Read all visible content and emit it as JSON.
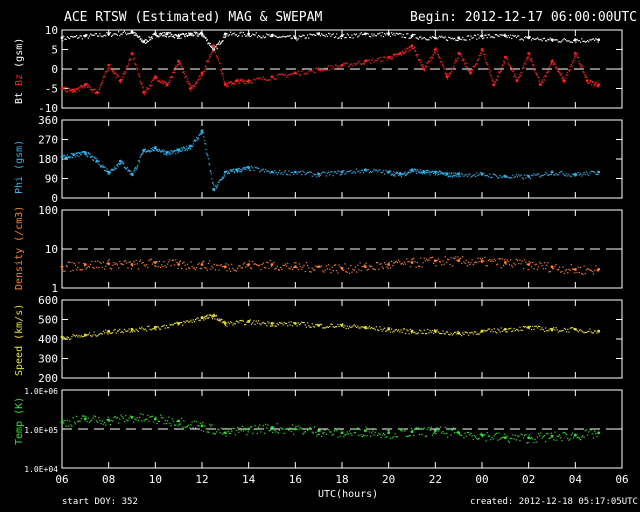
{
  "header": {
    "title": "ACE RTSW (Estimated) MAG & SWEPAM",
    "begin": "Begin: 2012-12-17 06:00:00UTC"
  },
  "footer": {
    "start_doy": "start DOY: 352",
    "created": "created: 2012-12-18 05:17:05UTC"
  },
  "colors": {
    "bt": "#ffffff",
    "bz": "#ff2020",
    "phi": "#30b0e8",
    "density": "#ff8030",
    "speed": "#e8e030",
    "temp": "#30e030",
    "axis": "#ffffff",
    "refline": "#ffffff"
  },
  "chart_data": [
    {
      "type": "scatter",
      "id": "mag-bt-bz",
      "ylabel_parts": [
        "Bt",
        "Bz",
        "(gsm)"
      ],
      "ylim": [
        -10,
        10
      ],
      "yticks": [
        {
          "v": 10,
          "label": "10"
        },
        {
          "v": 5,
          "label": "5"
        },
        {
          "v": 0,
          "label": "0"
        },
        {
          "v": -5,
          "label": "-5"
        },
        {
          "v": -10,
          "label": "-10"
        }
      ],
      "reference_lines": [
        0
      ],
      "series": [
        {
          "name": "Bt",
          "color": "#ffffff",
          "x": [
            0,
            1,
            2,
            3,
            3.5,
            4,
            4.5,
            5,
            5.5,
            6,
            6.5,
            7,
            8,
            9,
            10,
            11,
            12,
            13,
            14,
            15,
            16,
            17,
            18,
            19,
            20,
            21,
            22,
            23
          ],
          "values": [
            8,
            8.5,
            9,
            9.5,
            7,
            9,
            9,
            8.5,
            9,
            9,
            5,
            9,
            9,
            8.5,
            8,
            9,
            8.5,
            9,
            9,
            8.5,
            8,
            8,
            8.5,
            8.5,
            8,
            7.5,
            7.5,
            7.5
          ]
        },
        {
          "name": "Bz",
          "color": "#ff2020",
          "x": [
            0,
            0.5,
            1,
            1.5,
            2,
            2.5,
            3,
            3.5,
            4,
            4.5,
            5,
            5.5,
            6,
            6.5,
            7,
            7.5,
            8,
            9,
            10,
            11,
            12,
            13,
            14,
            14.5,
            15,
            15.5,
            16,
            16.5,
            17,
            17.5,
            18,
            18.5,
            19,
            19.5,
            20,
            20.5,
            21,
            21.5,
            22,
            22.5,
            23
          ],
          "values": [
            -5,
            -5.5,
            -4,
            -6,
            1,
            -3,
            4,
            -6,
            -2,
            -4,
            2,
            -5,
            -1,
            6,
            -4,
            -3,
            -3,
            -2,
            -1,
            0,
            1,
            2,
            3,
            4,
            6,
            0,
            5,
            -2,
            4,
            -1,
            5,
            -4,
            3,
            -3,
            4,
            -4,
            2,
            -3,
            4,
            -3,
            -4
          ]
        }
      ]
    },
    {
      "type": "scatter",
      "id": "phi",
      "ylabel": "Phi (gsm)",
      "ylim": [
        0,
        360
      ],
      "yticks": [
        {
          "v": 360,
          "label": "360"
        },
        {
          "v": 270,
          "label": "270"
        },
        {
          "v": 180,
          "label": "180"
        },
        {
          "v": 90,
          "label": "90"
        },
        {
          "v": 0,
          "label": "0"
        }
      ],
      "series": [
        {
          "name": "Phi",
          "color": "#30b0e8",
          "x": [
            0,
            0.5,
            1,
            1.5,
            2,
            2.5,
            3,
            3.5,
            4,
            4.5,
            5,
            5.5,
            6,
            6.5,
            7,
            7.5,
            8,
            9,
            10,
            11,
            12,
            13,
            14,
            14.5,
            15,
            15.5,
            16,
            16.5,
            17,
            18,
            19,
            20,
            21,
            22,
            23
          ],
          "values": [
            190,
            200,
            210,
            170,
            120,
            170,
            110,
            220,
            230,
            210,
            220,
            240,
            310,
            40,
            120,
            130,
            140,
            120,
            120,
            110,
            120,
            130,
            120,
            110,
            130,
            120,
            120,
            110,
            110,
            110,
            100,
            100,
            120,
            110,
            120
          ]
        }
      ]
    },
    {
      "type": "scatter",
      "id": "density",
      "ylabel": "Density (/cm3)",
      "yscale": "log",
      "ylim": [
        1,
        100
      ],
      "yticks": [
        {
          "v": 100,
          "label": "100"
        },
        {
          "v": 10,
          "label": "10"
        },
        {
          "v": 1,
          "label": "1"
        }
      ],
      "reference_lines": [
        10
      ],
      "series": [
        {
          "name": "Density",
          "color": "#ff8030",
          "x": [
            0,
            1,
            2,
            3,
            4,
            5,
            6,
            7,
            8,
            9,
            10,
            11,
            12,
            13,
            14,
            15,
            16,
            17,
            18,
            19,
            20,
            21,
            22,
            23
          ],
          "values": [
            3.5,
            4,
            4.2,
            4,
            4.5,
            4,
            4,
            3.5,
            4,
            4,
            3.5,
            3.5,
            3.2,
            3.5,
            4,
            4.5,
            5,
            5,
            4.8,
            4.5,
            4,
            3.5,
            3,
            3
          ]
        }
      ]
    },
    {
      "type": "scatter",
      "id": "speed",
      "ylabel": "Speed (km/s)",
      "ylim": [
        200,
        600
      ],
      "yticks": [
        {
          "v": 600,
          "label": "600"
        },
        {
          "v": 500,
          "label": "500"
        },
        {
          "v": 400,
          "label": "400"
        },
        {
          "v": 300,
          "label": "300"
        },
        {
          "v": 200,
          "label": "200"
        }
      ],
      "series": [
        {
          "name": "Speed",
          "color": "#e8e030",
          "x": [
            0,
            1,
            2,
            3,
            4,
            5,
            6,
            6.5,
            7,
            8,
            9,
            10,
            11,
            12,
            13,
            14,
            15,
            16,
            17,
            18,
            19,
            20,
            21,
            22,
            23
          ],
          "values": [
            410,
            420,
            440,
            450,
            460,
            480,
            510,
            520,
            480,
            490,
            480,
            480,
            470,
            470,
            460,
            450,
            440,
            440,
            430,
            440,
            450,
            460,
            450,
            450,
            440
          ]
        }
      ]
    },
    {
      "type": "scatter",
      "id": "temp",
      "ylabel": "Temp (K)",
      "yscale": "log",
      "ylim": [
        10000,
        1000000
      ],
      "yticks": [
        {
          "v": 1000000,
          "label": "1.0E+06"
        },
        {
          "v": 100000,
          "label": "1.0E+05"
        },
        {
          "v": 10000,
          "label": "1.0E+04"
        }
      ],
      "reference_lines": [
        100000
      ],
      "series": [
        {
          "name": "Temp",
          "color": "#30e030",
          "x": [
            0,
            1,
            2,
            3,
            4,
            5,
            6,
            7,
            8,
            9,
            10,
            11,
            12,
            13,
            14,
            15,
            16,
            17,
            18,
            19,
            20,
            21,
            22,
            23
          ],
          "values": [
            150000,
            180000,
            170000,
            200000,
            180000,
            160000,
            120000,
            80000,
            100000,
            110000,
            100000,
            90000,
            80000,
            90000,
            80000,
            85000,
            90000,
            80000,
            70000,
            60000,
            60000,
            65000,
            70000,
            80000
          ]
        }
      ]
    }
  ],
  "x_axis": {
    "xlabel": "UTC(hours)",
    "range": [
      0,
      24
    ],
    "tick_labels": [
      "06",
      "08",
      "10",
      "12",
      "14",
      "16",
      "18",
      "20",
      "22",
      "00",
      "02",
      "04",
      "06"
    ]
  }
}
